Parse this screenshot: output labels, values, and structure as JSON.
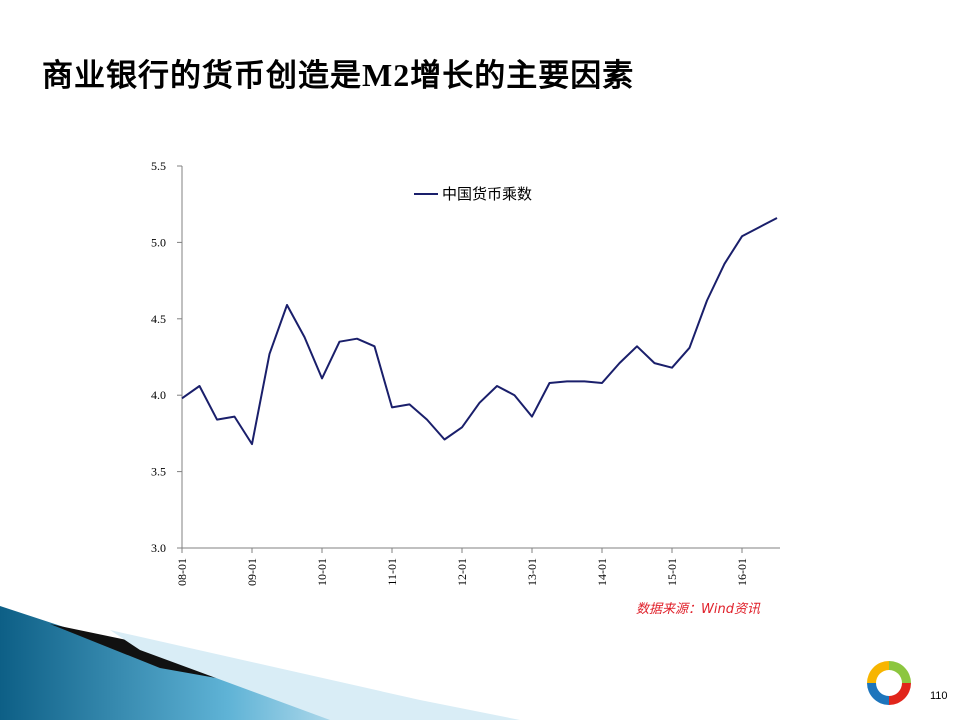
{
  "title": {
    "main": "商业银行的货币创造是",
    "latin": "M2",
    "rest": "增长的主要因素"
  },
  "source": "数据来源：Wind资讯",
  "page_number": "110",
  "colors": {
    "line": "#1a1f6b",
    "source_text": "#e0202a",
    "decor_dark": "#0d5f86",
    "decor_light": "#5fb3d6"
  },
  "chart_data": {
    "type": "line",
    "title": "",
    "xlabel": "",
    "ylabel": "",
    "ylim": [
      3.0,
      5.5
    ],
    "yticks": [
      "3.0",
      "3.5",
      "4.0",
      "4.5",
      "5.0",
      "5.5"
    ],
    "xticks": [
      "08-01",
      "09-01",
      "10-01",
      "11-01",
      "12-01",
      "13-01",
      "14-01",
      "15-01",
      "16-01"
    ],
    "legend_position": "top-center",
    "grid": false,
    "series": [
      {
        "name": "中国货币乘数",
        "x": [
          "08-01",
          "08-04",
          "08-07",
          "08-10",
          "09-01",
          "09-04",
          "09-07",
          "09-10",
          "10-01",
          "10-04",
          "10-07",
          "10-10",
          "11-01",
          "11-04",
          "11-07",
          "11-10",
          "12-01",
          "12-04",
          "12-07",
          "12-10",
          "13-01",
          "13-04",
          "13-07",
          "13-10",
          "14-01",
          "14-04",
          "14-07",
          "14-10",
          "15-01",
          "15-04",
          "15-07",
          "15-10",
          "16-01",
          "16-04",
          "16-07"
        ],
        "values": [
          3.98,
          4.06,
          3.84,
          3.86,
          3.68,
          4.27,
          4.59,
          4.38,
          4.11,
          4.35,
          4.37,
          4.32,
          3.92,
          3.94,
          3.84,
          3.71,
          3.79,
          3.95,
          4.06,
          4.0,
          3.86,
          4.08,
          4.09,
          4.09,
          4.08,
          4.21,
          4.32,
          4.21,
          4.18,
          4.31,
          4.62,
          4.86,
          5.04,
          5.1,
          5.16
        ]
      }
    ]
  }
}
